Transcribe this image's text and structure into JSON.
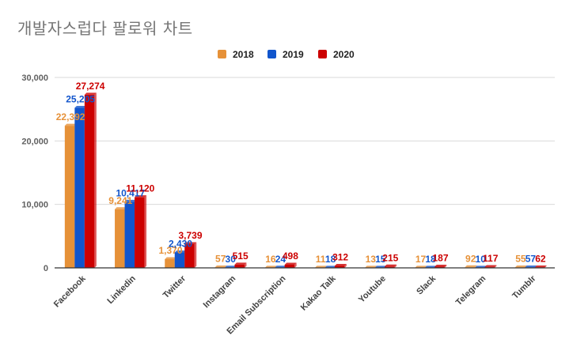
{
  "chart_data": {
    "type": "bar",
    "title": "개발자스럽다 팔로워 차트",
    "xlabel": "",
    "ylabel": "",
    "ylim": [
      0,
      30000
    ],
    "yticks": [
      0,
      10000,
      20000,
      30000
    ],
    "ytick_labels": [
      "0",
      "10,000",
      "20,000",
      "30,000"
    ],
    "grid": true,
    "legend_position": "top",
    "categories": [
      "Facebook",
      "Linkedin",
      "Twitter",
      "Instagram",
      "Email Subscription",
      "Kakao Talk",
      "Youtube",
      "Slack",
      "Telegram",
      "Tumblr"
    ],
    "series": [
      {
        "name": "2018",
        "color": "#e69138",
        "label_color": "#e69138",
        "values": [
          22392,
          9241,
          1370,
          57,
          16,
          11,
          13,
          17,
          92,
          55
        ],
        "labels": [
          "22,392",
          "9,241",
          "1,370",
          "57",
          "16",
          "11",
          "13",
          "17",
          "92",
          "55"
        ]
      },
      {
        "name": "2019",
        "color": "#1155cc",
        "label_color": "#1155cc",
        "values": [
          25205,
          10417,
          2430,
          30,
          24,
          18,
          15,
          18,
          10,
          57
        ],
        "labels": [
          "25,205",
          "10,417",
          "2,430",
          "30",
          "24",
          "18",
          "15",
          "18",
          "10",
          "57"
        ]
      },
      {
        "name": "2020",
        "color": "#cc0000",
        "label_color": "#cc0000",
        "values": [
          27274,
          11120,
          3739,
          515,
          498,
          312,
          215,
          187,
          117,
          62
        ],
        "labels": [
          "27,274",
          "11,120",
          "3,739",
          "515",
          "498",
          "312",
          "215",
          "187",
          "117",
          "62"
        ]
      }
    ]
  }
}
